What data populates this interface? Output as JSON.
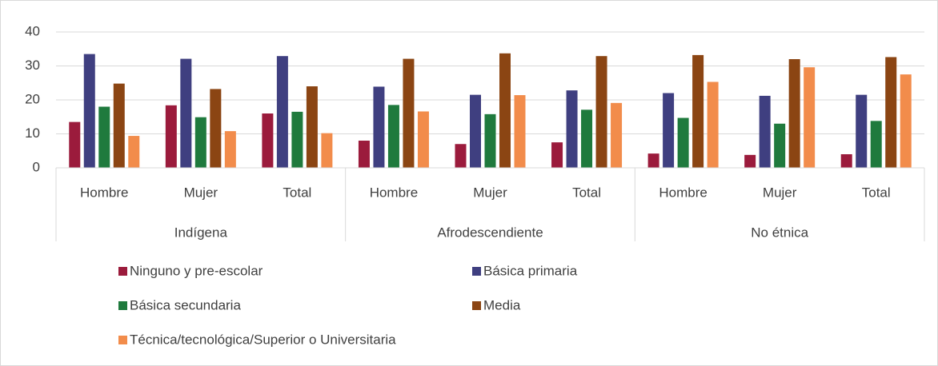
{
  "chart_data": {
    "type": "bar",
    "categories": [
      "Hombre",
      "Mujer",
      "Total",
      "Hombre",
      "Mujer",
      "Total",
      "Hombre",
      "Mujer",
      "Total"
    ],
    "groups": [
      "Indígena",
      "Afrodescendiente",
      "No étnica"
    ],
    "series": [
      {
        "name": "Ninguno y pre-escolar",
        "color": "#9b1b3c",
        "values": [
          13.5,
          18.4,
          16.0,
          8.0,
          7.0,
          7.5,
          4.2,
          3.8,
          4.0
        ]
      },
      {
        "name": "Básica primaria",
        "color": "#3f3f80",
        "values": [
          33.5,
          32.1,
          32.9,
          23.9,
          21.5,
          22.8,
          22.0,
          21.2,
          21.5
        ]
      },
      {
        "name": "Básica secundaria",
        "color": "#1f7a3d",
        "values": [
          18.0,
          14.9,
          16.5,
          18.5,
          15.8,
          17.1,
          14.7,
          13.0,
          13.8
        ]
      },
      {
        "name": "Media",
        "color": "#8b4513",
        "values": [
          24.8,
          23.2,
          24.0,
          32.1,
          33.7,
          32.9,
          33.2,
          32.0,
          32.6
        ]
      },
      {
        "name": "Técnica/tecnológica/Superior o Universitaria",
        "color": "#f28c4b",
        "values": [
          9.4,
          10.8,
          10.2,
          16.6,
          21.4,
          19.1,
          25.3,
          29.6,
          27.5
        ]
      }
    ],
    "ylim": [
      0,
      40
    ],
    "yticks": [
      0,
      10,
      20,
      30,
      40
    ],
    "grid": true
  }
}
